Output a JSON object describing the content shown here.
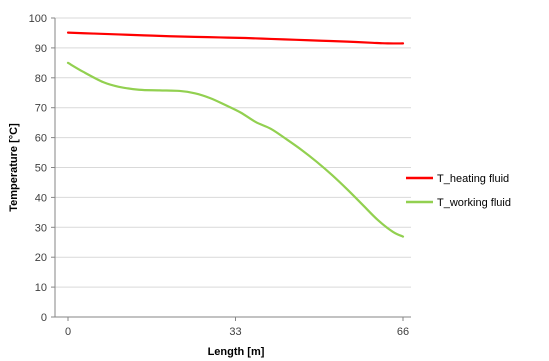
{
  "chart_data": {
    "type": "line",
    "title": "",
    "xlabel": "Length [m]",
    "ylabel": "Temperature [°C]",
    "xlim": [
      0,
      66
    ],
    "ylim": [
      0,
      100
    ],
    "x_ticks": [
      0,
      33,
      66
    ],
    "x_tick_labels": [
      "0",
      "33",
      "66"
    ],
    "y_ticks": [
      0,
      10,
      20,
      30,
      40,
      50,
      60,
      70,
      80,
      90,
      100
    ],
    "y_tick_labels": [
      "0",
      "10",
      "20",
      "30",
      "40",
      "50",
      "60",
      "70",
      "80",
      "90",
      "100"
    ],
    "grid": "horizontal",
    "legend_position": "right",
    "series": [
      {
        "name": "T_heating fluid",
        "color": "#ff0000",
        "x": [
          0,
          5,
          10,
          15,
          20,
          25,
          30,
          35,
          40,
          45,
          50,
          55,
          60,
          63,
          66
        ],
        "y": [
          95.1,
          94.8,
          94.5,
          94.2,
          93.9,
          93.7,
          93.5,
          93.3,
          93.0,
          92.7,
          92.4,
          92.1,
          91.7,
          91.5,
          91.5
        ]
      },
      {
        "name": "T_working fluid",
        "color": "#92d050",
        "x": [
          0,
          3,
          7,
          10,
          14,
          18,
          22,
          25,
          28,
          31,
          34,
          37,
          40,
          43,
          46,
          49,
          52,
          55,
          58,
          61,
          64,
          66
        ],
        "y": [
          85,
          82,
          78.5,
          77,
          76,
          75.8,
          75.6,
          74.8,
          73.2,
          70.9,
          68.4,
          65.2,
          62.9,
          59.5,
          55.9,
          51.9,
          47.5,
          42.7,
          37.6,
          32.5,
          28.5,
          26.9
        ]
      }
    ]
  }
}
